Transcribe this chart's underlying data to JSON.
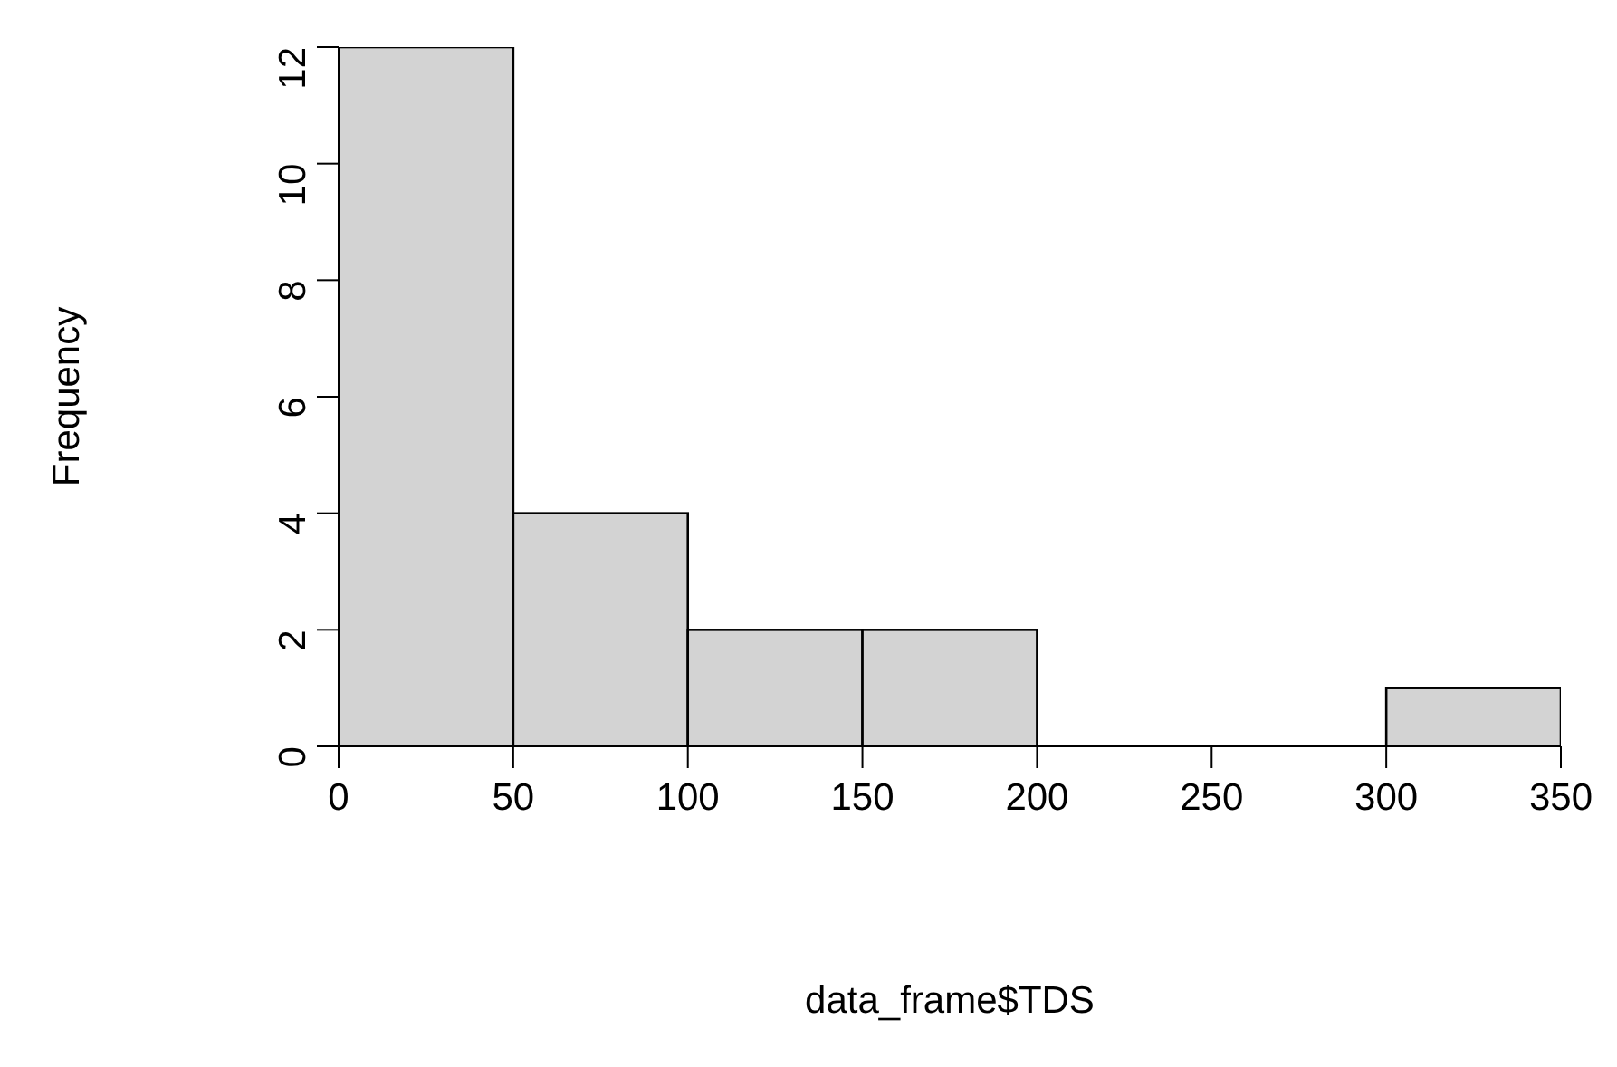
{
  "chart_data": {
    "type": "histogram",
    "xlabel": "data_frame$TDS",
    "ylabel": "Frequency",
    "bins": [
      0,
      50,
      100,
      150,
      200,
      250,
      300,
      350
    ],
    "values": [
      12,
      4,
      2,
      2,
      0,
      0,
      1
    ],
    "color": "#d3d3d3",
    "xlim": [
      0,
      350
    ],
    "xticks": [
      0,
      50,
      100,
      150,
      200,
      250,
      300,
      350
    ],
    "ylim": [
      0,
      12
    ],
    "yticks": [
      0,
      2,
      4,
      6,
      8,
      10,
      12
    ]
  }
}
